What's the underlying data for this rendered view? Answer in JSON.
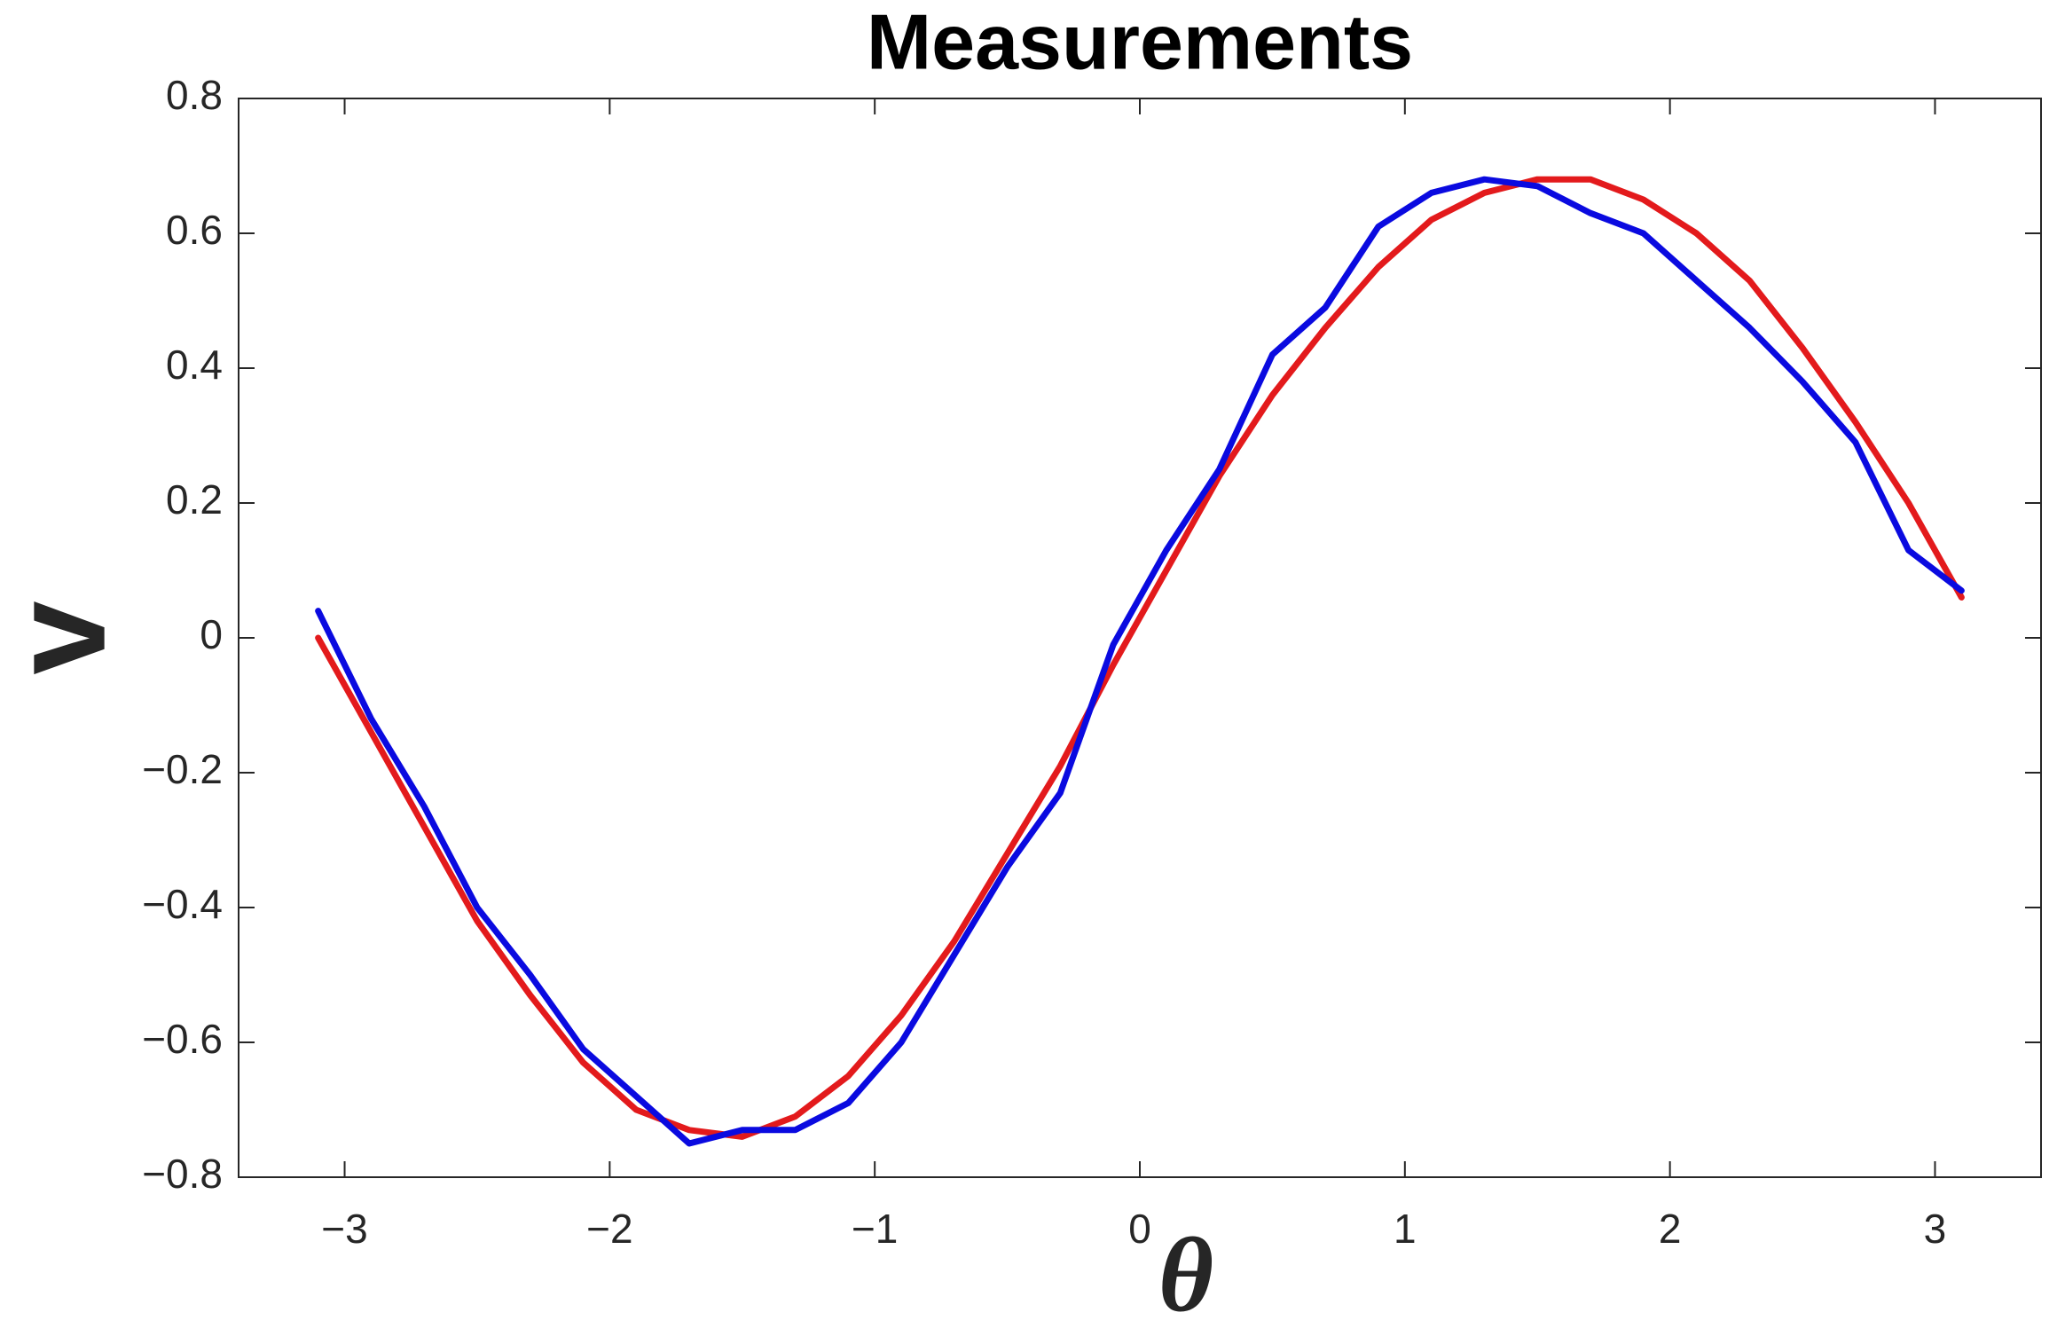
{
  "chart_data": {
    "type": "line",
    "title": "Measurements",
    "x_label": "θ",
    "y_label": "v",
    "x": [
      -3.1,
      -2.9,
      -2.7,
      -2.5,
      -2.3,
      -2.1,
      -1.9,
      -1.7,
      -1.5,
      -1.3,
      -1.1,
      -0.9,
      -0.7,
      -0.5,
      -0.3,
      -0.1,
      0.1,
      0.3,
      0.5,
      0.7,
      0.9,
      1.1,
      1.3,
      1.5,
      1.7,
      1.9,
      2.1,
      2.3,
      2.5,
      2.7,
      2.9,
      3.1
    ],
    "series": [
      {
        "color": "#e31a1c",
        "values": [
          0.0,
          -0.14,
          -0.28,
          -0.42,
          -0.53,
          -0.63,
          -0.7,
          -0.73,
          -0.74,
          -0.71,
          -0.65,
          -0.56,
          -0.45,
          -0.32,
          -0.19,
          -0.04,
          0.1,
          0.24,
          0.36,
          0.46,
          0.55,
          0.62,
          0.66,
          0.68,
          0.68,
          0.65,
          0.6,
          0.53,
          0.43,
          0.32,
          0.2,
          0.06
        ]
      },
      {
        "color": "#0a0ae0",
        "values": [
          0.04,
          -0.12,
          -0.25,
          -0.4,
          -0.5,
          -0.61,
          -0.68,
          -0.75,
          -0.73,
          -0.73,
          -0.69,
          -0.6,
          -0.47,
          -0.34,
          -0.23,
          -0.01,
          0.13,
          0.25,
          0.42,
          0.49,
          0.61,
          0.66,
          0.68,
          0.67,
          0.63,
          0.6,
          0.53,
          0.46,
          0.38,
          0.29,
          0.13,
          0.07
        ]
      }
    ],
    "xlim": [
      -3.4,
      3.4
    ],
    "xticks": [
      {
        "value": -3,
        "label": "−3"
      },
      {
        "value": -2,
        "label": "−2"
      },
      {
        "value": -1,
        "label": "−1"
      },
      0,
      1,
      2,
      3
    ],
    "ylim": [
      -0.8,
      0.8
    ],
    "yticks": [
      {
        "value": -0.8,
        "label": "−0.8"
      },
      {
        "value": -0.6,
        "label": "−0.6"
      },
      {
        "value": -0.4,
        "label": "−0.4"
      },
      {
        "value": -0.2,
        "label": "−0.2"
      },
      0,
      0.2,
      0.4,
      0.6,
      0.8
    ],
    "grid": false
  }
}
